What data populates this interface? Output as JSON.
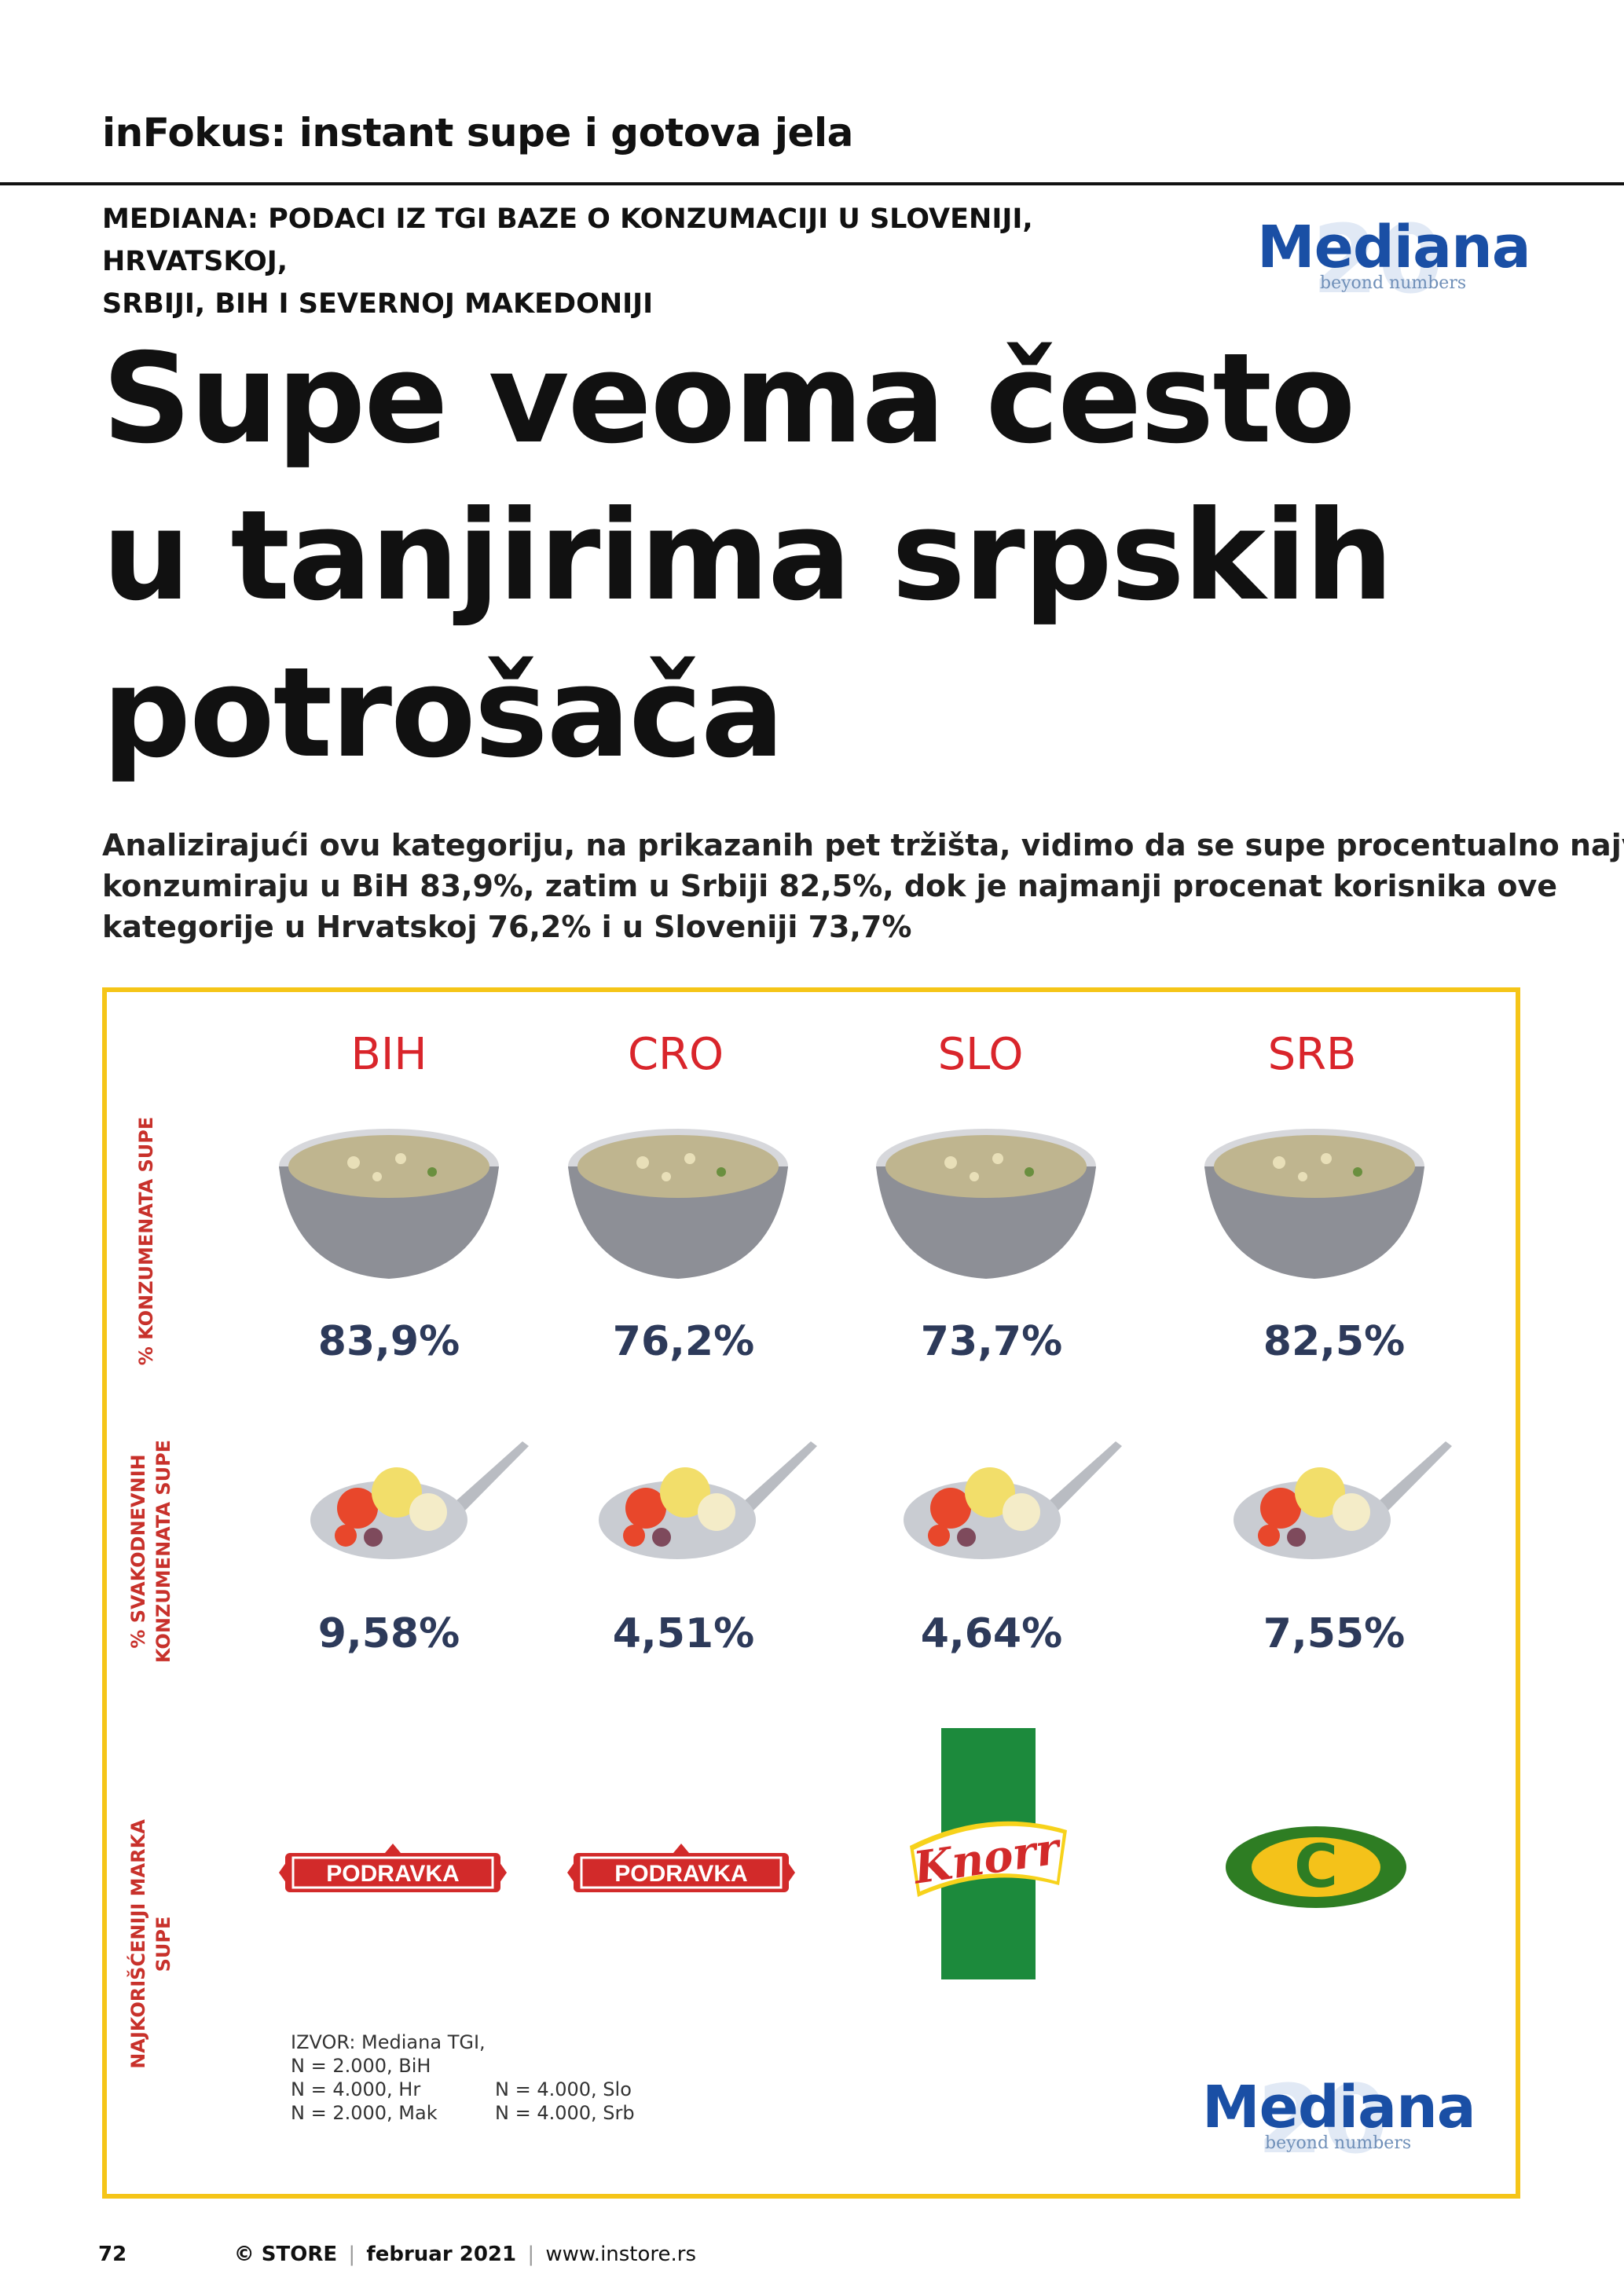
{
  "section_tag": "inFokus: instant supe i gotova jela",
  "kicker": [
    "MEDIANA: PODACI IZ TGI BAZE O KONZUMACIJI U SLOVENIJI, HRVATSKOJ,",
    "SRBIJI, BIH I SEVERNOJ MAKEDONIJI"
  ],
  "logo": {
    "word": "Mediana",
    "sub": "beyond numbers",
    "num": "20"
  },
  "headline": [
    "Supe veoma često",
    "u tanjirima srpskih",
    "potrošača"
  ],
  "lead": [
    "Analizirajući ovu kategoriju, na prikazanih pet tržišta, vidimo da se supe procentualno najviše",
    "konzumiraju u BiH 83,9%, zatim u Srbiji 82,5%, dok je najmanji procenat korisnika ove",
    "kategorije u Hrvatskoj 76,2% i u Sloveniji 73,7%"
  ],
  "infographic": {
    "side_labels": {
      "consumption": "% KONZUMENATA SUPE",
      "daily_1": "% SVAKODNEVNIH",
      "daily_2": "KONZUMENATA SUPE",
      "brand_1": "NAJKORIŠĆENIJI MARKA",
      "brand_2": "SUPE"
    },
    "countries": [
      {
        "code": "BIH",
        "consumption": "83,9%",
        "daily": "9,58%",
        "brand": "PODRAVKA"
      },
      {
        "code": "CRO",
        "consumption": "76,2%",
        "daily": "4,51%",
        "brand": "PODRAVKA"
      },
      {
        "code": "SLO",
        "consumption": "73,7%",
        "daily": "4,64%",
        "brand": "Knorr"
      },
      {
        "code": "SRB",
        "consumption": "82,5%",
        "daily": "7,55%",
        "brand": "C"
      }
    ],
    "source": {
      "lines_left": [
        "IZVOR: Mediana TGI,",
        "N = 2.000, BiH",
        "N = 4.000, Hr",
        "N = 2.000, Mak"
      ],
      "lines_right": [
        "N = 4.000, Slo",
        "N = 4.000, Srb"
      ]
    },
    "accent_color": "#f5c518",
    "label_color": "#c8312b",
    "country_color": "#d9252b"
  },
  "footer": {
    "page": "72",
    "magazine": "© STORE",
    "issue": "februar 2021",
    "url": "www.instore.rs"
  }
}
